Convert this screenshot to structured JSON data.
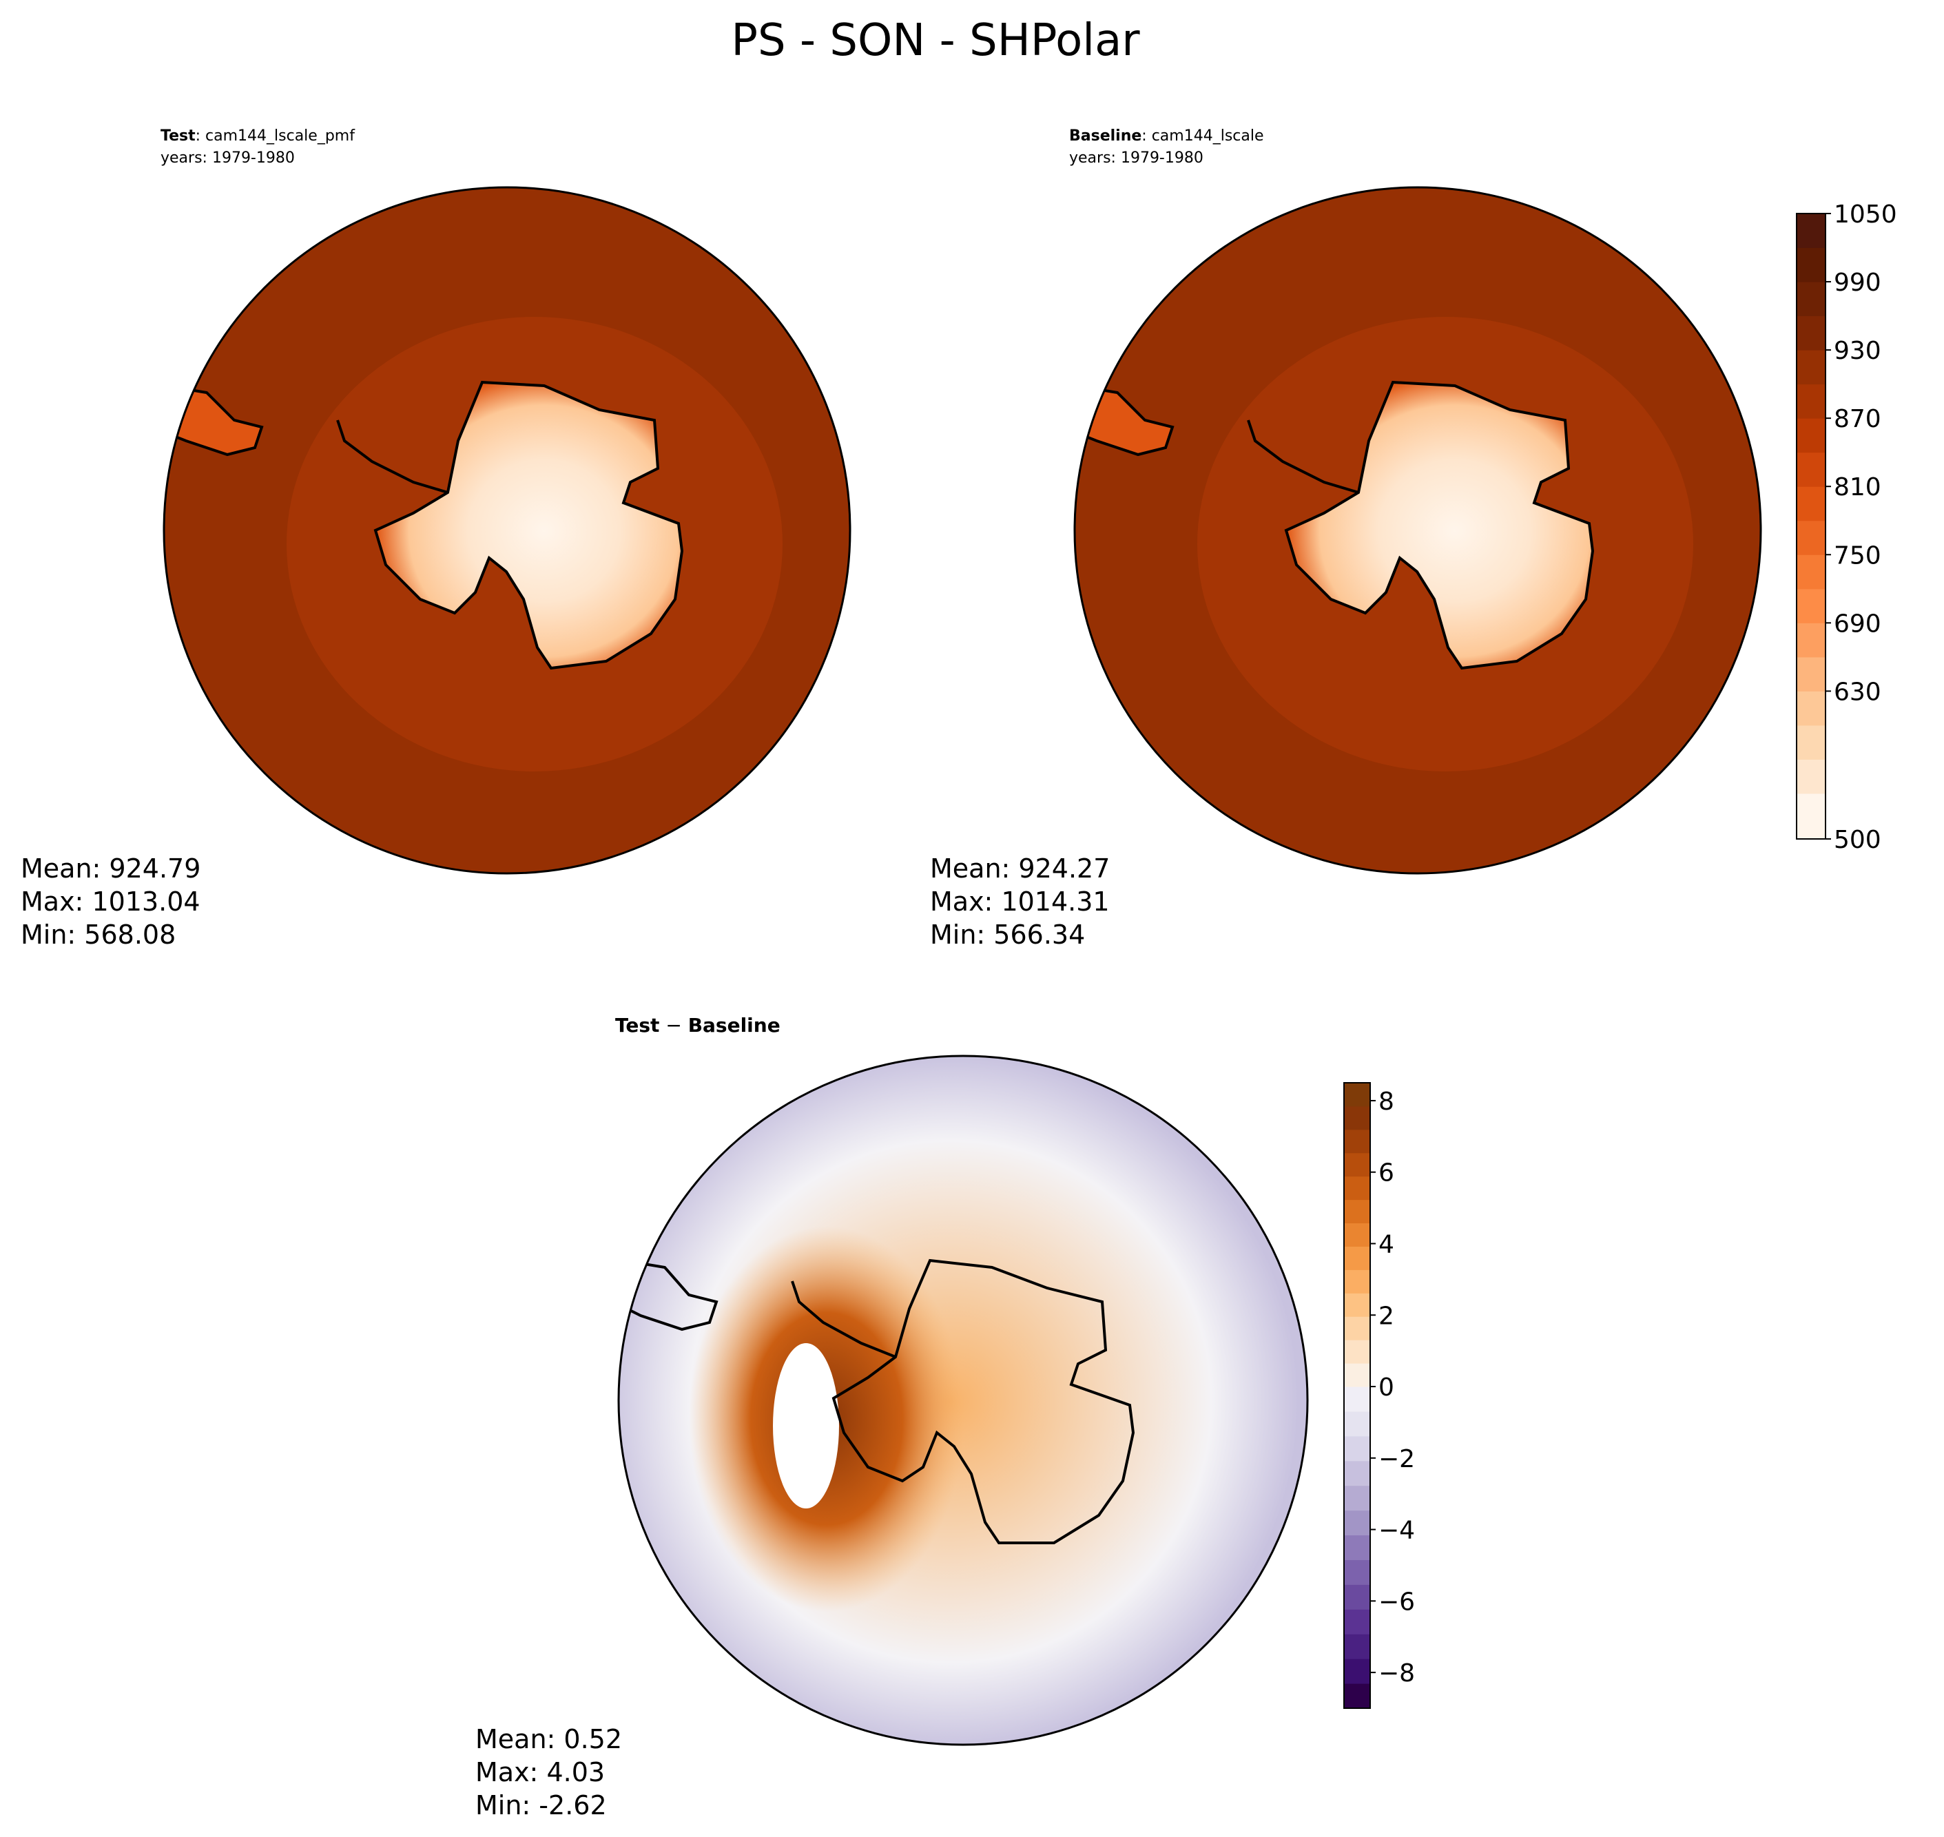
{
  "figure": {
    "title": "PS - SON - SHPolar"
  },
  "chart_data": [
    {
      "type": "heatmap",
      "projection": "south-polar-stereographic",
      "title_bold": "Test",
      "title_rest": ": cam144_lscale_pmf",
      "subtitle": "years: 1979-1980",
      "colormap": "Oranges",
      "range": [
        500,
        1050
      ],
      "stats": {
        "mean": "Mean: 924.79",
        "max": "Max: 1013.04",
        "min": "Min: 568.08"
      }
    },
    {
      "type": "heatmap",
      "projection": "south-polar-stereographic",
      "title_bold": "Baseline",
      "title_rest": ": cam144_lscale",
      "subtitle": "years: 1979-1980",
      "colormap": "Oranges",
      "range": [
        500,
        1050
      ],
      "stats": {
        "mean": "Mean: 924.27",
        "max": "Max: 1014.31",
        "min": "Min: 566.34"
      }
    },
    {
      "type": "heatmap",
      "projection": "south-polar-stereographic",
      "title_bold": "Test",
      "title_rest": " − ",
      "title_bold2": "Baseline",
      "colormap": "PuOr_r (diverging)",
      "range": [
        -9,
        8.5
      ],
      "stats": {
        "mean": "Mean:  0.52",
        "max": "Max:  4.03",
        "min": "Min: -2.62"
      }
    }
  ],
  "colorbars": [
    {
      "range": [
        500,
        1050
      ],
      "levels": [
        500,
        540,
        570,
        600,
        630,
        660,
        690,
        720,
        750,
        780,
        810,
        840,
        870,
        900,
        930,
        960,
        990,
        1020,
        1050
      ],
      "ticks": [
        "500",
        "630",
        "690",
        "750",
        "810",
        "870",
        "930",
        "990",
        "1050"
      ],
      "tick_values": [
        500,
        630,
        690,
        750,
        810,
        870,
        930,
        990,
        1050
      ],
      "colors": [
        "#fff5eb",
        "#fee6ce",
        "#fdd8b1",
        "#fdc897",
        "#fdb57d",
        "#fd9f60",
        "#fd8c47",
        "#f67b34",
        "#ec6722",
        "#e05512",
        "#d0470b",
        "#bd3b04",
        "#a93503",
        "#963003",
        "#7f2704",
        "#6e2204",
        "#5f1c03",
        "#52180b"
      ]
    },
    {
      "range": [
        -9,
        8.5
      ],
      "ticks": [
        "−8",
        "−6",
        "−4",
        "−2",
        "0",
        "2",
        "4",
        "6",
        "8"
      ],
      "tick_values": [
        -8,
        -6,
        -4,
        -2,
        0,
        2,
        4,
        6,
        8
      ],
      "low_colors": [
        "#2d004b",
        "#3b0f70",
        "#4a2182",
        "#5b3393",
        "#6a4a9f",
        "#7c62ad",
        "#8e7ab9",
        "#a295c6",
        "#b5abd2",
        "#c7c0de",
        "#d8d4e9",
        "#e5e3f0",
        "#f0eef6"
      ],
      "high_colors": [
        "#fbefe2",
        "#fde2c5",
        "#fdd3a5",
        "#fdc283",
        "#fbae63",
        "#f59a47",
        "#ea8530",
        "#dc711e",
        "#cb5e12",
        "#b74e0c",
        "#a14109",
        "#8a3608",
        "#7f3b08"
      ]
    }
  ],
  "palette": {
    "outer_ring": "#963003",
    "mid_ring": "#a53505",
    "coast": "#e05512",
    "ice": "#fdc897",
    "plateau": "#fee6ce",
    "dome": "#fff5eb",
    "diff_purple": "#c8c2df",
    "diff_neutral": "#f4f3f6",
    "diff_orange": "#f8b36a",
    "diff_brown": "#8a3608"
  }
}
